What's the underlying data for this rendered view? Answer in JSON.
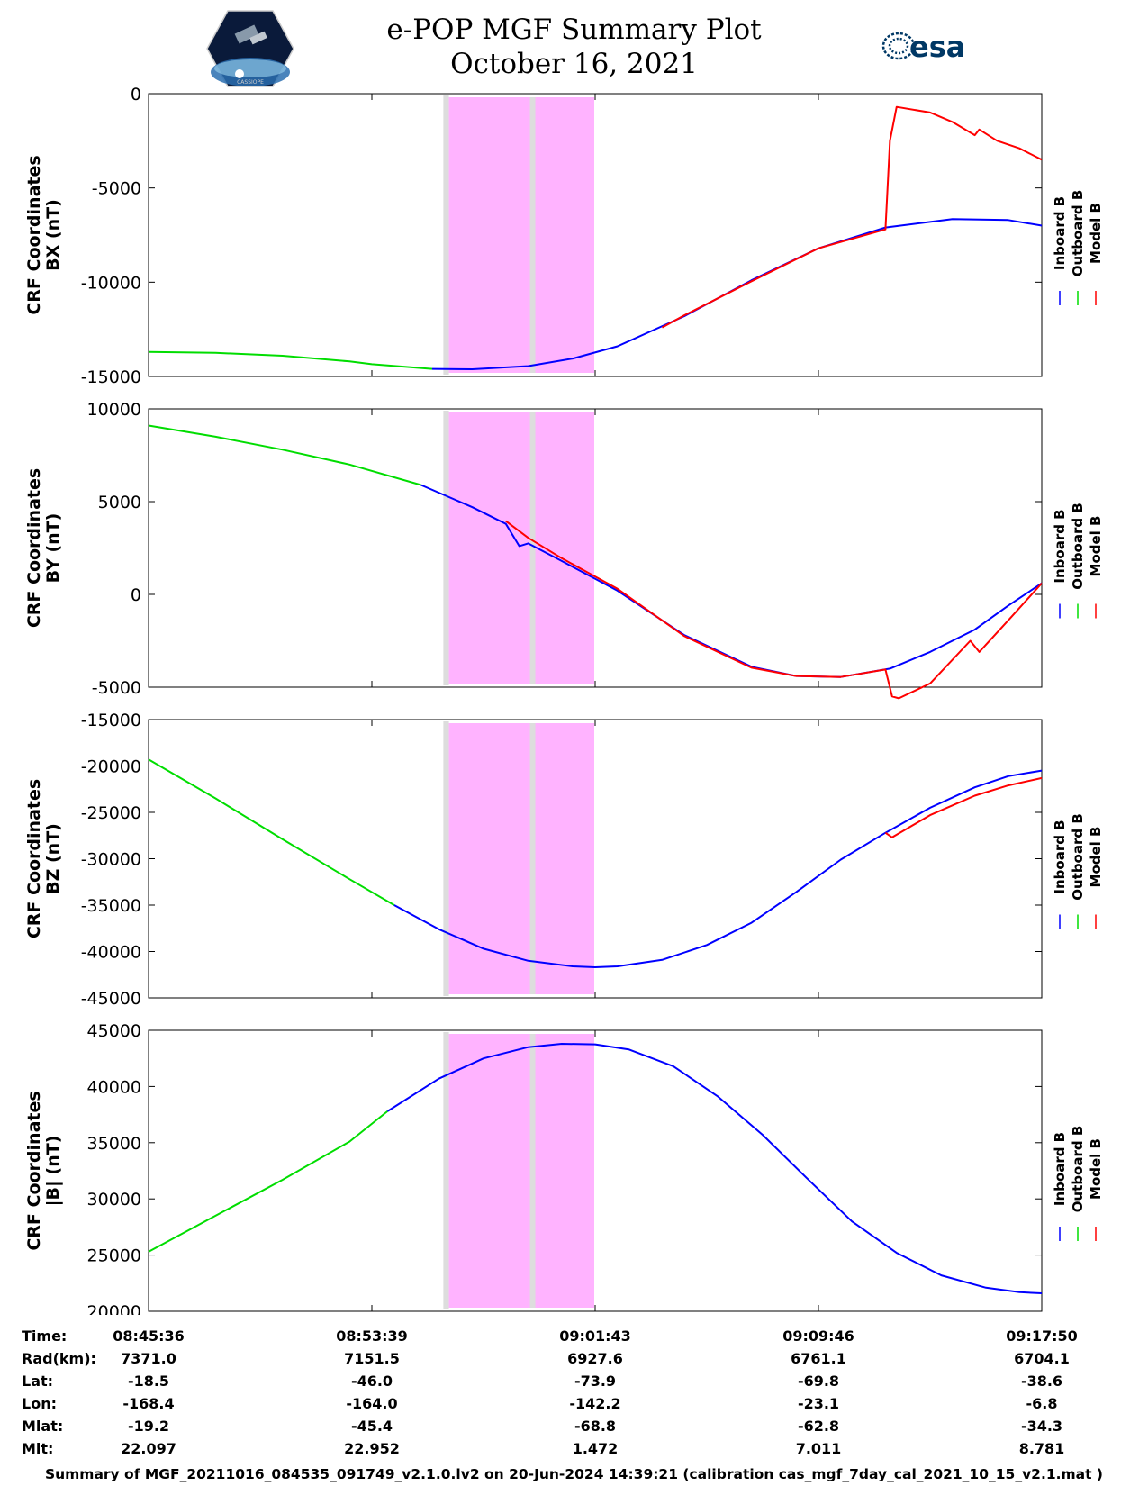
{
  "header": {
    "title_line1": "e-POP MGF Summary Plot",
    "title_line2": "October 16, 2021",
    "left_logo_text": "CASSIOPE",
    "right_logo_text": "esa"
  },
  "legend": {
    "entries": [
      "Inboard B",
      "Outboard B",
      "Model B"
    ],
    "colors": [
      "#0000ff",
      "#00dd00",
      "#ff0000"
    ]
  },
  "shading": {
    "gray_color": "#dddddd",
    "magenta_color": "#ffb3ff",
    "t_start": 1.32,
    "t_magenta_start": 1.345,
    "t_gray2": 1.72,
    "t_end": 2.0
  },
  "chart_data": [
    {
      "type": "line",
      "ylabel": [
        "CRF Coordinates",
        "BX (nT)"
      ],
      "ylim": [
        -15000,
        0
      ],
      "yticks": [
        0,
        -5000,
        -10000,
        -15000
      ],
      "x_unit_note": "x in ticks, 0 = 08:45:36, 1 = 08:53:39 ... 4 = 09:17:50",
      "series": [
        {
          "name": "Outboard B",
          "color": "#00dd00",
          "x": [
            0,
            0.3,
            0.6,
            0.9,
            1.0,
            1.27
          ],
          "values": [
            -13700,
            -13750,
            -13900,
            -14200,
            -14350,
            -14600
          ]
        },
        {
          "name": "Inboard B",
          "color": "#0000ff",
          "x": [
            1.27,
            1.45,
            1.7,
            1.9,
            2.1,
            2.4,
            2.7,
            3.0,
            3.3,
            3.6,
            3.85,
            4.0
          ],
          "values": [
            -14600,
            -14620,
            -14450,
            -14050,
            -13400,
            -11800,
            -9900,
            -8200,
            -7100,
            -6650,
            -6700,
            -7000
          ]
        },
        {
          "name": "Model B",
          "color": "#ff0000",
          "x": [
            2.3,
            2.4,
            2.7,
            3.0,
            3.3,
            3.32,
            3.35,
            3.5,
            3.6,
            3.7,
            3.72,
            3.8,
            3.9,
            4.0
          ],
          "values": [
            -12400,
            -11750,
            -9950,
            -8200,
            -7200,
            -2500,
            -700,
            -1000,
            -1500,
            -2200,
            -1900,
            -2500,
            -2900,
            -3500
          ]
        }
      ]
    },
    {
      "type": "line",
      "ylabel": [
        "CRF Coordinates",
        "BY (nT)"
      ],
      "ylim": [
        -5000,
        10000
      ],
      "yticks": [
        10000,
        5000,
        0,
        -5000
      ],
      "series": [
        {
          "name": "Outboard B",
          "color": "#00dd00",
          "x": [
            0,
            0.3,
            0.6,
            0.9,
            1.22
          ],
          "values": [
            9100,
            8500,
            7800,
            7000,
            5900
          ]
        },
        {
          "name": "Inboard B",
          "color": "#0000ff",
          "x": [
            1.22,
            1.45,
            1.6,
            1.66,
            1.7,
            1.85,
            2.1,
            2.4,
            2.7,
            2.9,
            3.1,
            3.32,
            3.5,
            3.7,
            3.85,
            4.0
          ],
          "values": [
            5900,
            4700,
            3800,
            2600,
            2750,
            1800,
            200,
            -2200,
            -3900,
            -4400,
            -4450,
            -4000,
            -3100,
            -1900,
            -600,
            600
          ]
        },
        {
          "name": "Model B",
          "color": "#ff0000",
          "x": [
            1.6,
            1.7,
            1.85,
            2.1,
            2.4,
            2.7,
            2.9,
            3.1,
            3.3,
            3.33,
            3.36,
            3.5,
            3.68,
            3.72,
            3.85,
            4.0
          ],
          "values": [
            3950,
            3050,
            1950,
            300,
            -2250,
            -3950,
            -4400,
            -4450,
            -4050,
            -5500,
            -5600,
            -4800,
            -2500,
            -3100,
            -1400,
            600
          ]
        }
      ]
    },
    {
      "type": "line",
      "ylabel": [
        "CRF Coordinates",
        "BZ (nT)"
      ],
      "ylim": [
        -45000,
        -15000
      ],
      "yticks": [
        -15000,
        -20000,
        -25000,
        -30000,
        -35000,
        -40000,
        -45000
      ],
      "series": [
        {
          "name": "Outboard B",
          "color": "#00dd00",
          "x": [
            0,
            0.3,
            0.6,
            0.9,
            1.1
          ],
          "values": [
            -19300,
            -23500,
            -27900,
            -32200,
            -35000
          ]
        },
        {
          "name": "Inboard B",
          "color": "#0000ff",
          "x": [
            1.1,
            1.3,
            1.5,
            1.7,
            1.9,
            2.0,
            2.1,
            2.3,
            2.5,
            2.7,
            2.9,
            3.1,
            3.3,
            3.5,
            3.7,
            3.85,
            4.0
          ],
          "values": [
            -35000,
            -37600,
            -39700,
            -41000,
            -41600,
            -41700,
            -41600,
            -40900,
            -39300,
            -36900,
            -33600,
            -30100,
            -27200,
            -24500,
            -22300,
            -21100,
            -20500
          ]
        },
        {
          "name": "Model B",
          "color": "#ff0000",
          "x": [
            3.3,
            3.33,
            3.5,
            3.7,
            3.85,
            4.0
          ],
          "values": [
            -27200,
            -27700,
            -25300,
            -23200,
            -22100,
            -21300
          ]
        }
      ]
    },
    {
      "type": "line",
      "ylabel": [
        "CRF Coordinates",
        "|B| (nT)"
      ],
      "ylim": [
        20000,
        45000
      ],
      "yticks": [
        45000,
        40000,
        35000,
        30000,
        25000,
        20000
      ],
      "series": [
        {
          "name": "Outboard B",
          "color": "#00dd00",
          "x": [
            0,
            0.3,
            0.6,
            0.9,
            1.07
          ],
          "values": [
            25300,
            28500,
            31700,
            35100,
            37800
          ]
        },
        {
          "name": "Inboard B",
          "color": "#0000ff",
          "x": [
            1.07,
            1.3,
            1.5,
            1.7,
            1.85,
            2.0,
            2.15,
            2.35,
            2.55,
            2.75,
            2.95,
            3.15,
            3.35,
            3.55,
            3.75,
            3.9,
            4.0
          ],
          "values": [
            37800,
            40700,
            42500,
            43500,
            43800,
            43750,
            43300,
            41800,
            39100,
            35700,
            31800,
            28000,
            25200,
            23200,
            22100,
            21700,
            21600
          ]
        }
      ]
    }
  ],
  "info_table": {
    "columns": [
      {
        "time": "08:45:36",
        "rad": "7371.0",
        "lat": "-18.5",
        "lon": "-168.4",
        "mlat": "-19.2",
        "mlt": "22.097"
      },
      {
        "time": "08:53:39",
        "rad": "7151.5",
        "lat": "-46.0",
        "lon": "-164.0",
        "mlat": "-45.4",
        "mlt": "22.952"
      },
      {
        "time": "09:01:43",
        "rad": "6927.6",
        "lat": "-73.9",
        "lon": "-142.2",
        "mlat": "-68.8",
        "mlt": "1.472"
      },
      {
        "time": "09:09:46",
        "rad": "6761.1",
        "lat": "-69.8",
        "lon": "-23.1",
        "mlat": "-62.8",
        "mlt": "7.011"
      },
      {
        "time": "09:17:50",
        "rad": "6704.1",
        "lat": "-38.6",
        "lon": "-6.8",
        "mlat": "-34.3",
        "mlt": "8.781"
      }
    ],
    "row_labels": {
      "time": "Time:",
      "rad": "Rad(km):",
      "lat": "Lat:",
      "lon": "Lon:",
      "mlat": "Mlat:",
      "mlt": "Mlt:"
    }
  },
  "footer": "Summary of MGF_20211016_084535_091749_v2.1.0.lv2 on 20-Jun-2024 14:39:21 (calibration cas_mgf_7day_cal_2021_10_15_v2.1.mat )"
}
